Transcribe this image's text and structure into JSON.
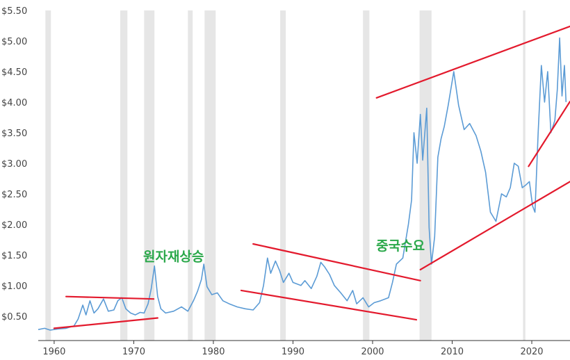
{
  "chart_data": {
    "type": "line",
    "title": "",
    "xlabel": "",
    "ylabel": "",
    "xlim": [
      1958,
      2024.8
    ],
    "ylim": [
      0.1,
      5.5
    ],
    "y_ticks": [
      0.5,
      1.0,
      1.5,
      2.0,
      2.5,
      3.0,
      3.5,
      4.0,
      4.5,
      5.0,
      5.5
    ],
    "y_tick_labels": [
      "$0.50",
      "$1.00",
      "$1.50",
      "$2.00",
      "$2.50",
      "$3.00",
      "$3.50",
      "$4.00",
      "$4.50",
      "$5.00",
      "$5.50"
    ],
    "x_ticks": [
      1960,
      1970,
      1980,
      1990,
      2000,
      2010,
      2020
    ],
    "x_tick_labels": [
      "1960",
      "1970",
      "1980",
      "1990",
      "2000",
      "2010",
      "2020"
    ],
    "grid": "vertical recession bands only",
    "recession_bands": [
      [
        1958.9,
        1959.6
      ],
      [
        1968.3,
        1969.2
      ],
      [
        1971.3,
        1972.6
      ],
      [
        1976.8,
        1977.4
      ],
      [
        1978.9,
        1980.3
      ],
      [
        1988.4,
        1989.1
      ],
      [
        1998.8,
        1999.6
      ],
      [
        2005.9,
        2007.4
      ],
      [
        2018.9,
        2019.2
      ]
    ],
    "series": [
      {
        "color": "#5b9bd5",
        "points": [
          [
            1958.0,
            0.28
          ],
          [
            1958.8,
            0.3
          ],
          [
            1959.5,
            0.27
          ],
          [
            1960.5,
            0.29
          ],
          [
            1961.5,
            0.3
          ],
          [
            1962.5,
            0.34
          ],
          [
            1963.0,
            0.45
          ],
          [
            1963.6,
            0.68
          ],
          [
            1964.0,
            0.52
          ],
          [
            1964.5,
            0.75
          ],
          [
            1965.0,
            0.55
          ],
          [
            1965.5,
            0.62
          ],
          [
            1966.2,
            0.78
          ],
          [
            1966.8,
            0.58
          ],
          [
            1967.5,
            0.6
          ],
          [
            1968.0,
            0.75
          ],
          [
            1968.5,
            0.8
          ],
          [
            1969.0,
            0.62
          ],
          [
            1969.6,
            0.55
          ],
          [
            1970.2,
            0.52
          ],
          [
            1970.8,
            0.56
          ],
          [
            1971.3,
            0.55
          ],
          [
            1971.8,
            0.7
          ],
          [
            1972.2,
            0.95
          ],
          [
            1972.6,
            1.32
          ],
          [
            1973.0,
            0.82
          ],
          [
            1973.4,
            0.62
          ],
          [
            1974.0,
            0.55
          ],
          [
            1975.0,
            0.58
          ],
          [
            1976.0,
            0.65
          ],
          [
            1976.8,
            0.58
          ],
          [
            1977.5,
            0.75
          ],
          [
            1978.0,
            0.9
          ],
          [
            1978.5,
            1.1
          ],
          [
            1978.8,
            1.35
          ],
          [
            1979.2,
            0.98
          ],
          [
            1979.8,
            0.85
          ],
          [
            1980.5,
            0.88
          ],
          [
            1981.2,
            0.75
          ],
          [
            1982.0,
            0.7
          ],
          [
            1983.0,
            0.65
          ],
          [
            1984.0,
            0.62
          ],
          [
            1985.0,
            0.6
          ],
          [
            1985.8,
            0.72
          ],
          [
            1986.3,
            1.0
          ],
          [
            1986.8,
            1.45
          ],
          [
            1987.2,
            1.2
          ],
          [
            1987.8,
            1.4
          ],
          [
            1988.3,
            1.25
          ],
          [
            1988.8,
            1.05
          ],
          [
            1989.5,
            1.2
          ],
          [
            1990.0,
            1.05
          ],
          [
            1991.0,
            1.0
          ],
          [
            1991.5,
            1.08
          ],
          [
            1992.3,
            0.95
          ],
          [
            1993.0,
            1.15
          ],
          [
            1993.5,
            1.38
          ],
          [
            1994.0,
            1.3
          ],
          [
            1994.6,
            1.18
          ],
          [
            1995.2,
            1.0
          ],
          [
            1996.0,
            0.88
          ],
          [
            1996.8,
            0.75
          ],
          [
            1997.5,
            0.92
          ],
          [
            1998.0,
            0.7
          ],
          [
            1998.8,
            0.8
          ],
          [
            1999.5,
            0.65
          ],
          [
            2000.2,
            0.72
          ],
          [
            2001.0,
            0.75
          ],
          [
            2002.0,
            0.8
          ],
          [
            2002.5,
            1.05
          ],
          [
            2003.0,
            1.35
          ],
          [
            2003.8,
            1.45
          ],
          [
            2004.5,
            2.0
          ],
          [
            2004.9,
            2.4
          ],
          [
            2005.2,
            3.5
          ],
          [
            2005.6,
            3.0
          ],
          [
            2006.0,
            3.8
          ],
          [
            2006.3,
            3.05
          ],
          [
            2006.8,
            3.9
          ],
          [
            2007.1,
            1.95
          ],
          [
            2007.4,
            1.35
          ],
          [
            2007.8,
            1.8
          ],
          [
            2008.2,
            3.1
          ],
          [
            2008.6,
            3.4
          ],
          [
            2009.0,
            3.6
          ],
          [
            2009.5,
            3.95
          ],
          [
            2010.2,
            4.5
          ],
          [
            2010.8,
            3.95
          ],
          [
            2011.5,
            3.55
          ],
          [
            2012.2,
            3.65
          ],
          [
            2013.0,
            3.45
          ],
          [
            2013.6,
            3.2
          ],
          [
            2014.2,
            2.85
          ],
          [
            2014.8,
            2.2
          ],
          [
            2015.5,
            2.05
          ],
          [
            2016.2,
            2.5
          ],
          [
            2016.8,
            2.45
          ],
          [
            2017.3,
            2.6
          ],
          [
            2017.8,
            3.0
          ],
          [
            2018.3,
            2.95
          ],
          [
            2018.8,
            2.6
          ],
          [
            2019.3,
            2.65
          ],
          [
            2019.7,
            2.7
          ],
          [
            2020.1,
            2.3
          ],
          [
            2020.4,
            2.2
          ],
          [
            2020.8,
            3.5
          ],
          [
            2021.2,
            4.6
          ],
          [
            2021.6,
            4.0
          ],
          [
            2022.0,
            4.5
          ],
          [
            2022.4,
            3.5
          ],
          [
            2022.9,
            3.7
          ],
          [
            2023.2,
            4.2
          ],
          [
            2023.5,
            5.05
          ],
          [
            2023.8,
            4.1
          ],
          [
            2024.1,
            4.6
          ],
          [
            2024.3,
            4.0
          ]
        ]
      }
    ],
    "trend_lines": [
      {
        "x": [
          1961.5,
          1972.5
        ],
        "y": [
          0.82,
          0.78
        ]
      },
      {
        "x": [
          1960.0,
          1973.0
        ],
        "y": [
          0.3,
          0.47
        ]
      },
      {
        "x": [
          1985.0,
          2006.0
        ],
        "y": [
          1.68,
          1.08
        ]
      },
      {
        "x": [
          1983.5,
          2005.5
        ],
        "y": [
          0.92,
          0.44
        ]
      },
      {
        "x": [
          2000.5,
          2024.8
        ],
        "y": [
          4.07,
          5.24
        ]
      },
      {
        "x": [
          2006.0,
          2024.8
        ],
        "y": [
          1.26,
          2.7
        ]
      },
      {
        "x": [
          2019.6,
          2024.8
        ],
        "y": [
          2.95,
          4.01
        ]
      }
    ],
    "trend_color": "#e31a2d",
    "annotations": [
      {
        "text": "원자재상승",
        "color": "#2aa84a",
        "x": 1975.0,
        "y": 1.4
      },
      {
        "text": "중국수요",
        "color": "#2aa84a",
        "x": 2003.5,
        "y": 1.58
      }
    ]
  }
}
